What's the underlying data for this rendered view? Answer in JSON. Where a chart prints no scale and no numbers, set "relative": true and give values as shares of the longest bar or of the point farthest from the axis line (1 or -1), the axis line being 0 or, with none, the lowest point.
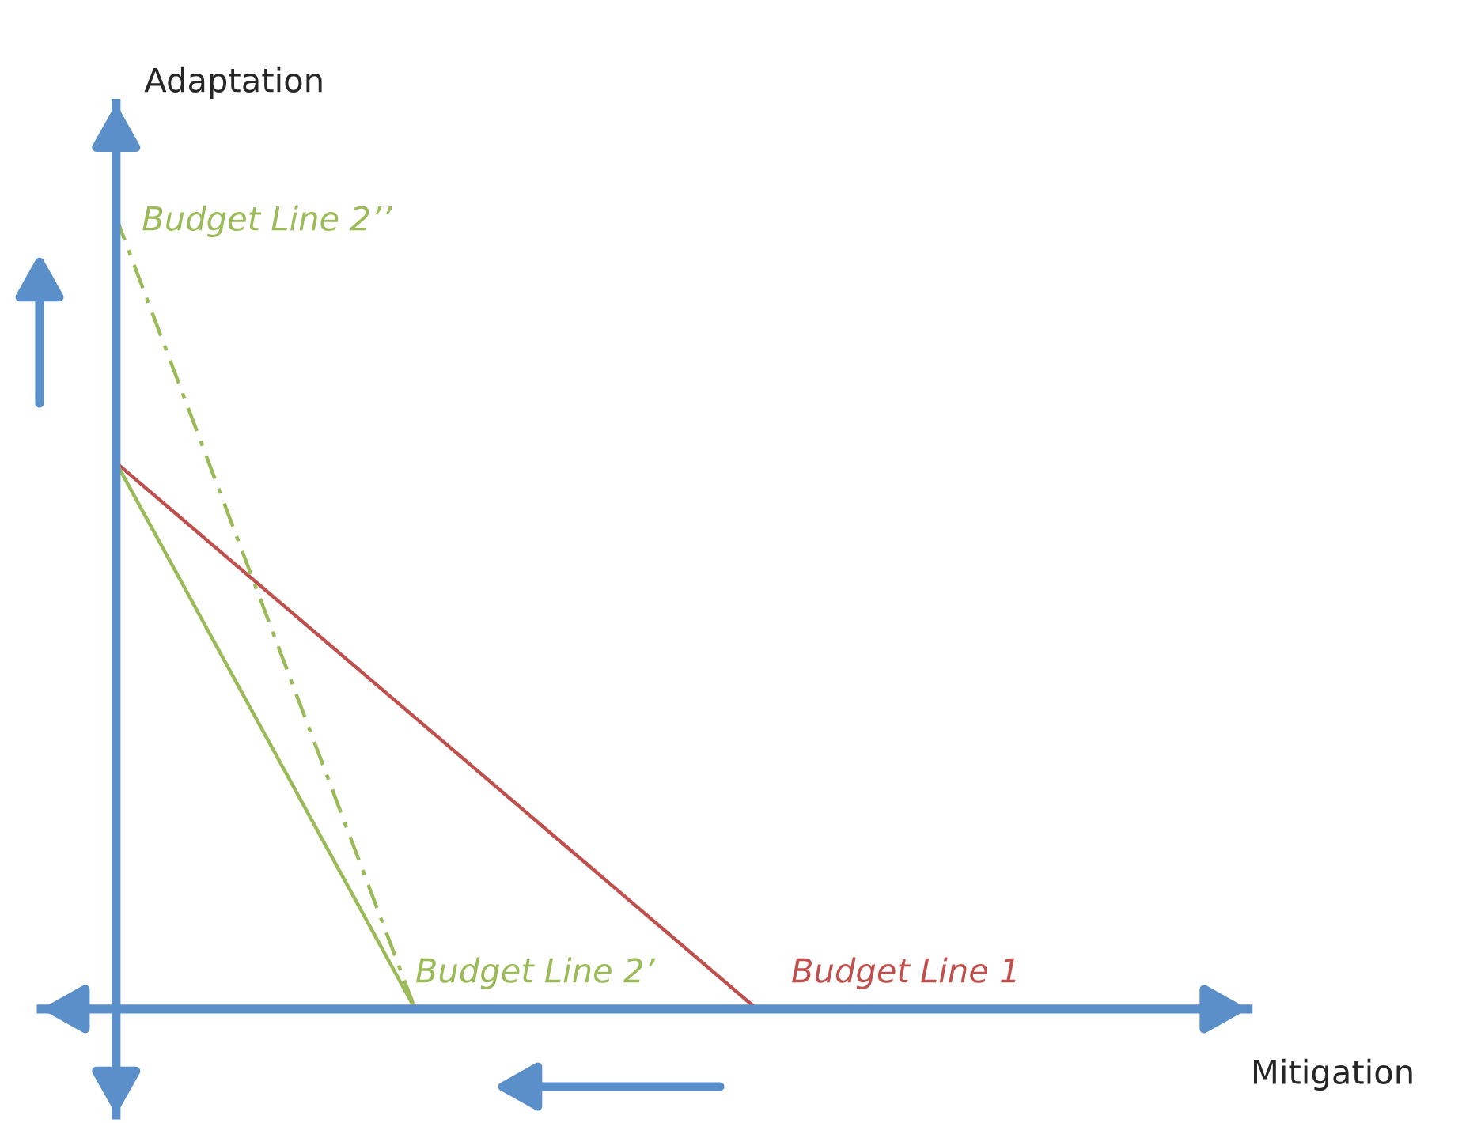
{
  "chart_data": {
    "type": "line",
    "relative": true,
    "xlabel": "Mitigation",
    "ylabel": "Adaptation",
    "categories": [
      null,
      null,
      null,
      null,
      null,
      null,
      null,
      null,
      null,
      null,
      null,
      null,
      null,
      null,
      null,
      null,
      null,
      null,
      null,
      null,
      null,
      null,
      null,
      null,
      null,
      null,
      null
    ],
    "series": [
      {
        "name": "Budget Line 1",
        "color": "#c0504d",
        "values": [
          0.69,
          null,
          null,
          null,
          null,
          null,
          null,
          null,
          null,
          null,
          null,
          null,
          null,
          null,
          null,
          0,
          null,
          null,
          null,
          null,
          null,
          null,
          null,
          null,
          null,
          null,
          null
        ]
      },
      {
        "name": "Budget Line 2’",
        "color": "#9bbb59",
        "values": [
          0.69,
          null,
          null,
          null,
          null,
          null,
          null,
          0,
          null,
          null,
          null,
          null,
          null,
          null,
          null,
          null,
          null,
          null,
          null,
          null,
          null,
          null,
          null,
          null,
          null,
          null,
          null
        ]
      },
      {
        "name": "Budget Line 2’’",
        "color": "#9bbb59",
        "line_style": "dashed",
        "values": [
          1,
          null,
          null,
          null,
          null,
          null,
          null,
          0,
          null,
          null,
          null,
          null,
          null,
          null,
          null,
          null,
          null,
          null,
          null,
          null,
          null,
          null,
          null,
          null,
          null,
          null,
          null
        ]
      }
    ],
    "grid": false,
    "legend": false
  }
}
